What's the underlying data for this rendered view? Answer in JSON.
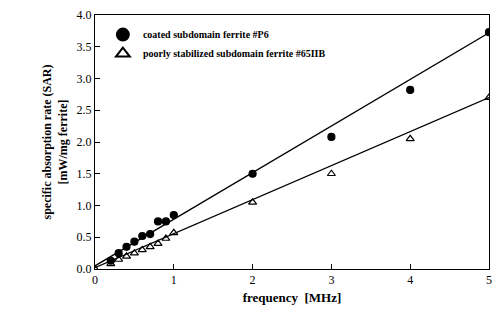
{
  "chart_data": {
    "type": "scatter",
    "x_label": "frequency  [MHz]",
    "y_label": [
      "specific absorption rate (SAR)",
      "[mW/mg ferrite]"
    ],
    "xlim": [
      0,
      5
    ],
    "xticks": [
      0,
      1,
      2,
      3,
      4,
      5
    ],
    "ylim": [
      0,
      4
    ],
    "yticks": [
      {
        "value": 0,
        "label": "0.0"
      },
      0.5,
      {
        "value": 1,
        "label": "1.0"
      },
      1.5,
      {
        "value": 2,
        "label": "2.0"
      },
      2.5,
      {
        "value": 3,
        "label": "3.0"
      },
      3.5,
      {
        "value": 4,
        "label": "4.0"
      }
    ],
    "grid": false,
    "legend": "upper left",
    "series": [
      {
        "name": "coated subdomain ferrite #P6",
        "type": "scatter",
        "marker": "circle",
        "color": "#000000",
        "x": [
          0.2,
          0.3,
          0.4,
          0.5,
          0.6,
          0.7,
          0.8,
          0.9,
          1.0,
          2,
          3,
          4,
          5
        ],
        "values": [
          0.13,
          0.25,
          0.35,
          0.43,
          0.52,
          0.55,
          0.75,
          0.75,
          0.85,
          1.5,
          2.08,
          2.82,
          3.73
        ]
      },
      {
        "name": "poorly stabilized subdomain ferrite #65IIB",
        "type": "scatter",
        "marker": "triangle-open",
        "color": "#000000",
        "x": [
          0,
          0.2,
          0.3,
          0.4,
          0.5,
          0.6,
          0.7,
          0.8,
          0.9,
          1.0,
          2,
          3,
          4,
          5
        ],
        "values": [
          0.0,
          0.08,
          0.15,
          0.2,
          0.25,
          0.3,
          0.35,
          0.4,
          0.48,
          0.57,
          1.05,
          1.5,
          2.05,
          2.7
        ]
      },
      {
        "type": "line",
        "line_style": "solid",
        "color": "#000000",
        "x": [
          0,
          5
        ],
        "values": [
          0.05,
          3.72
        ]
      },
      {
        "type": "line",
        "line_style": "solid",
        "color": "#000000",
        "x": [
          0,
          5
        ],
        "values": [
          0.02,
          2.7
        ]
      }
    ]
  }
}
